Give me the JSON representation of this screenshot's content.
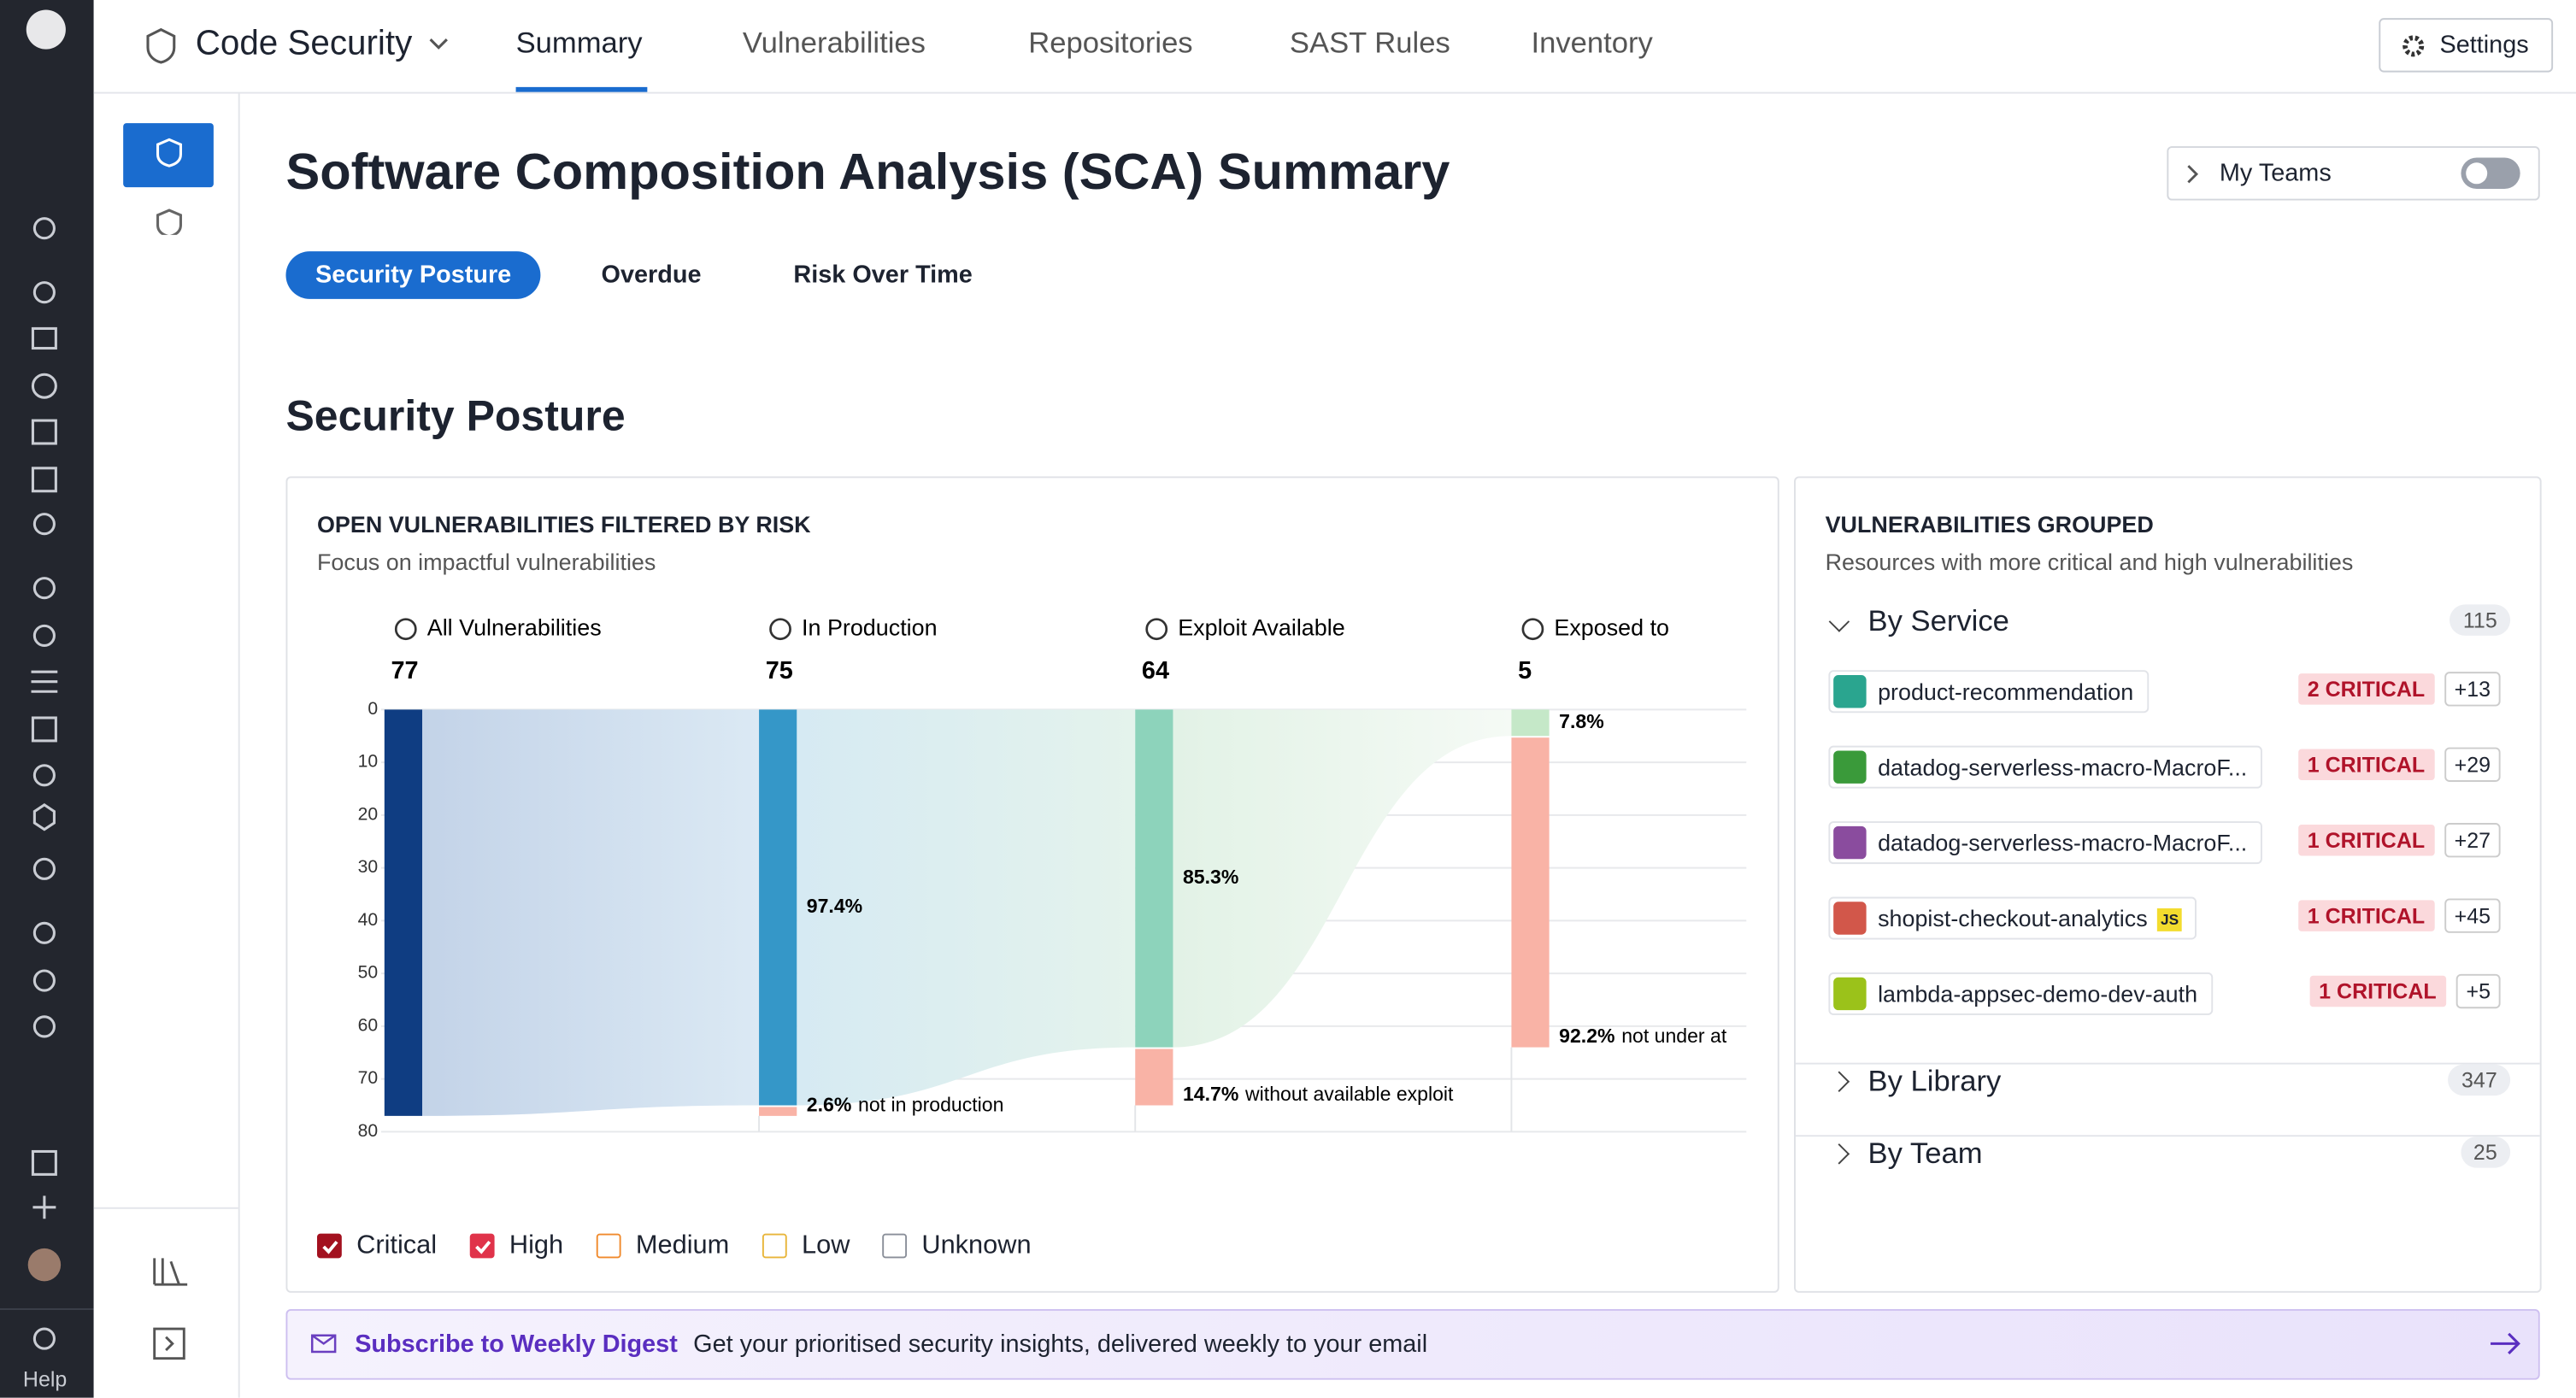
{
  "app": {
    "product": "Code Security",
    "tabs": [
      "Summary",
      "Vulnerabilities",
      "Repositories",
      "SAST Rules",
      "Inventory"
    ],
    "active_tab": 0,
    "settings": "Settings",
    "help": "Help"
  },
  "page": {
    "title": "Software Composition Analysis (SCA) Summary",
    "my_teams": "My Teams",
    "subtabs": [
      "Security Posture",
      "Overdue",
      "Risk Over Time"
    ],
    "active_subtab": 0,
    "section_title": "Security Posture"
  },
  "chart_data": {
    "type": "funnel",
    "title": "OPEN VULNERABILITIES FILTERED BY RISK",
    "subtitle": "Focus on impactful vulnerabilities",
    "categories": [
      "All Vulnerabilities",
      "In Production",
      "Exploit Available",
      "Exposed to"
    ],
    "values": [
      77,
      75,
      64,
      5
    ],
    "colors": [
      "#0f3d82",
      "#3597c8",
      "#8dd3bb",
      "#c5e8c8"
    ],
    "remainder_color": "#f9b3a6",
    "percent_labels": [
      null,
      "97.4%",
      "85.3%",
      "7.8%"
    ],
    "remainder_labels": [
      null,
      "2.6%",
      "14.7%",
      "92.2%"
    ],
    "remainder_texts": [
      null,
      "not in production",
      "without available exploit",
      "not under at"
    ],
    "ylim": [
      0,
      80
    ],
    "yticks": [
      0,
      10,
      20,
      30,
      40,
      50,
      60,
      70,
      80
    ],
    "grid": true,
    "legend": [
      {
        "name": "Critical",
        "checked": true,
        "color": "#a3111f"
      },
      {
        "name": "High",
        "checked": true,
        "color": "#e0334a"
      },
      {
        "name": "Medium",
        "checked": false,
        "color": "#f08a2c"
      },
      {
        "name": "Low",
        "checked": false,
        "color": "#e8b53a"
      },
      {
        "name": "Unknown",
        "checked": false,
        "color": "#8a8f99"
      }
    ]
  },
  "grouped": {
    "title": "VULNERABILITIES GROUPED",
    "subtitle": "Resources with more critical and high vulnerabilities",
    "groups": [
      {
        "name": "By Service",
        "count": 115,
        "expanded": true,
        "items": [
          {
            "name": "product-recommendation",
            "color": "#2aa58f",
            "critical": "2 CRITICAL",
            "more": "+13"
          },
          {
            "name": "datadog-serverless-macro-MacroF...",
            "color": "#3a9a3a",
            "critical": "1 CRITICAL",
            "more": "+29"
          },
          {
            "name": "datadog-serverless-macro-MacroF...",
            "color": "#8a4c9e",
            "critical": "1 CRITICAL",
            "more": "+27"
          },
          {
            "name": "shopist-checkout-analytics",
            "color": "#d2574a",
            "lang": "JS",
            "critical": "1 CRITICAL",
            "more": "+45"
          },
          {
            "name": "lambda-appsec-demo-dev-auth",
            "color": "#9bc21a",
            "critical": "1 CRITICAL",
            "more": "+5"
          }
        ]
      },
      {
        "name": "By Library",
        "count": 347,
        "expanded": false
      },
      {
        "name": "By Team",
        "count": 25,
        "expanded": false
      }
    ]
  },
  "banner": {
    "link": "Subscribe to Weekly Digest",
    "text": "Get your prioritised security insights, delivered weekly to your email"
  }
}
